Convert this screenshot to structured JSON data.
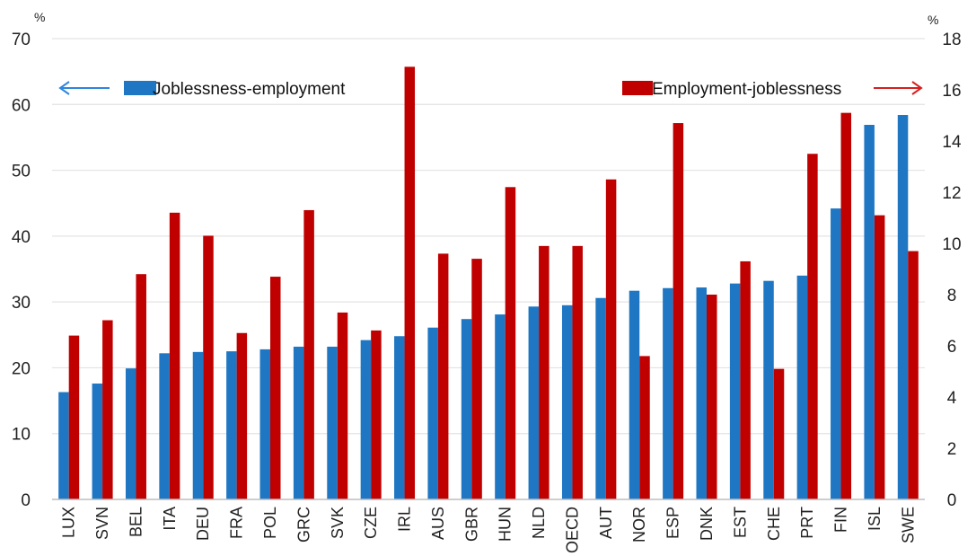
{
  "chart_data": {
    "type": "bar",
    "left_axis_unit": "%",
    "right_axis_unit": "%",
    "categories": [
      "LUX",
      "SVN",
      "BEL",
      "ITA",
      "DEU",
      "FRA",
      "POL",
      "GRC",
      "SVK",
      "CZE",
      "IRL",
      "AUS",
      "GBR",
      "HUN",
      "NLD",
      "OECD",
      "AUT",
      "NOR",
      "ESP",
      "DNK",
      "EST",
      "CHE",
      "PRT",
      "FIN",
      "ISL",
      "SWE"
    ],
    "series": [
      {
        "name": "Joblessness-employment",
        "axis": "left",
        "color": "#1f77c4",
        "values": [
          16.3,
          17.6,
          19.9,
          22.2,
          22.4,
          22.5,
          22.8,
          23.2,
          23.2,
          24.2,
          24.8,
          26.1,
          27.4,
          28.1,
          29.3,
          29.5,
          30.6,
          31.7,
          32.1,
          32.2,
          32.8,
          33.2,
          34.0,
          44.2,
          56.9,
          58.4
        ]
      },
      {
        "name": "Employment-joblessness",
        "axis": "right",
        "color": "#c00000",
        "values": [
          6.4,
          7.0,
          8.8,
          11.2,
          10.3,
          6.5,
          8.7,
          11.3,
          7.3,
          6.6,
          16.9,
          9.6,
          9.4,
          12.2,
          9.9,
          9.9,
          12.5,
          5.6,
          14.7,
          8.0,
          9.3,
          5.1,
          13.5,
          15.1,
          11.1,
          9.7
        ]
      }
    ],
    "left_axis": {
      "min": 0,
      "max": 70,
      "step": 10,
      "ticks": [
        "0",
        "10",
        "20",
        "30",
        "40",
        "50",
        "60",
        "70"
      ]
    },
    "right_axis": {
      "min": 0,
      "max": 18,
      "step": 2,
      "ticks": [
        "0",
        "2",
        "4",
        "6",
        "8",
        "10",
        "12",
        "14",
        "16",
        "18"
      ]
    },
    "grid": "horizontal",
    "legend": [
      {
        "label": "Joblessness-employment",
        "color": "#1f77c4",
        "arrow": "left",
        "arrow_color": "#2e86de"
      },
      {
        "label": "Employment-joblessness",
        "color": "#c00000",
        "arrow": "right",
        "arrow_color": "#d62020"
      }
    ],
    "legend_position": "top"
  }
}
